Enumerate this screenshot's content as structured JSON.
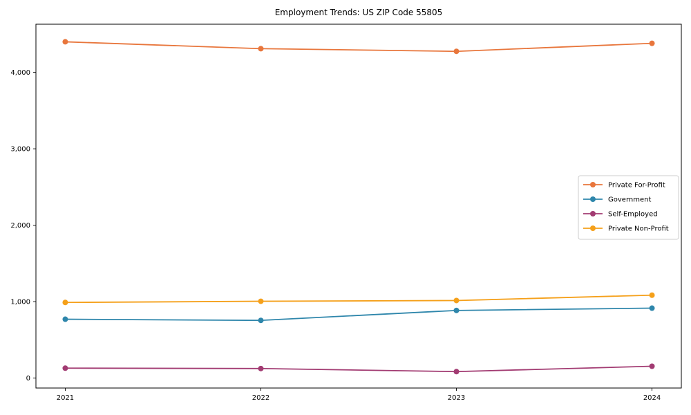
{
  "chart_data": {
    "type": "line",
    "title": "Employment Trends: US ZIP Code 55805",
    "xlabel": "",
    "ylabel": "",
    "x": [
      2021,
      2022,
      2023,
      2024
    ],
    "x_tick_labels": [
      "2021",
      "2022",
      "2023",
      "2024"
    ],
    "series": [
      {
        "name": "Private For-Profit",
        "color": "#E8763C",
        "values": [
          4400,
          4310,
          4275,
          4380
        ]
      },
      {
        "name": "Government",
        "color": "#2E86AB",
        "values": [
          770,
          755,
          885,
          915
        ]
      },
      {
        "name": "Self-Employed",
        "color": "#A23B72",
        "values": [
          130,
          125,
          85,
          155
        ]
      },
      {
        "name": "Private Non-Profit",
        "color": "#F5A01A",
        "values": [
          990,
          1005,
          1015,
          1085
        ]
      }
    ],
    "yticks": [
      0,
      1000,
      2000,
      3000,
      4000
    ],
    "ytick_labels": [
      "0",
      "1,000",
      "2,000",
      "3,000",
      "4,000"
    ],
    "xlim": [
      2020.85,
      2024.15
    ],
    "ylim": [
      -130,
      4630
    ],
    "grid": false,
    "legend": {
      "position": "right",
      "entries": [
        "Private For-Profit",
        "Government",
        "Self-Employed",
        "Private Non-Profit"
      ],
      "border_color": "#cccccc",
      "background": "#ffffff"
    },
    "axis_color": "#000000",
    "background_color": "#ffffff",
    "marker": "circle",
    "marker_radius": 4,
    "line_width": 1.8
  }
}
